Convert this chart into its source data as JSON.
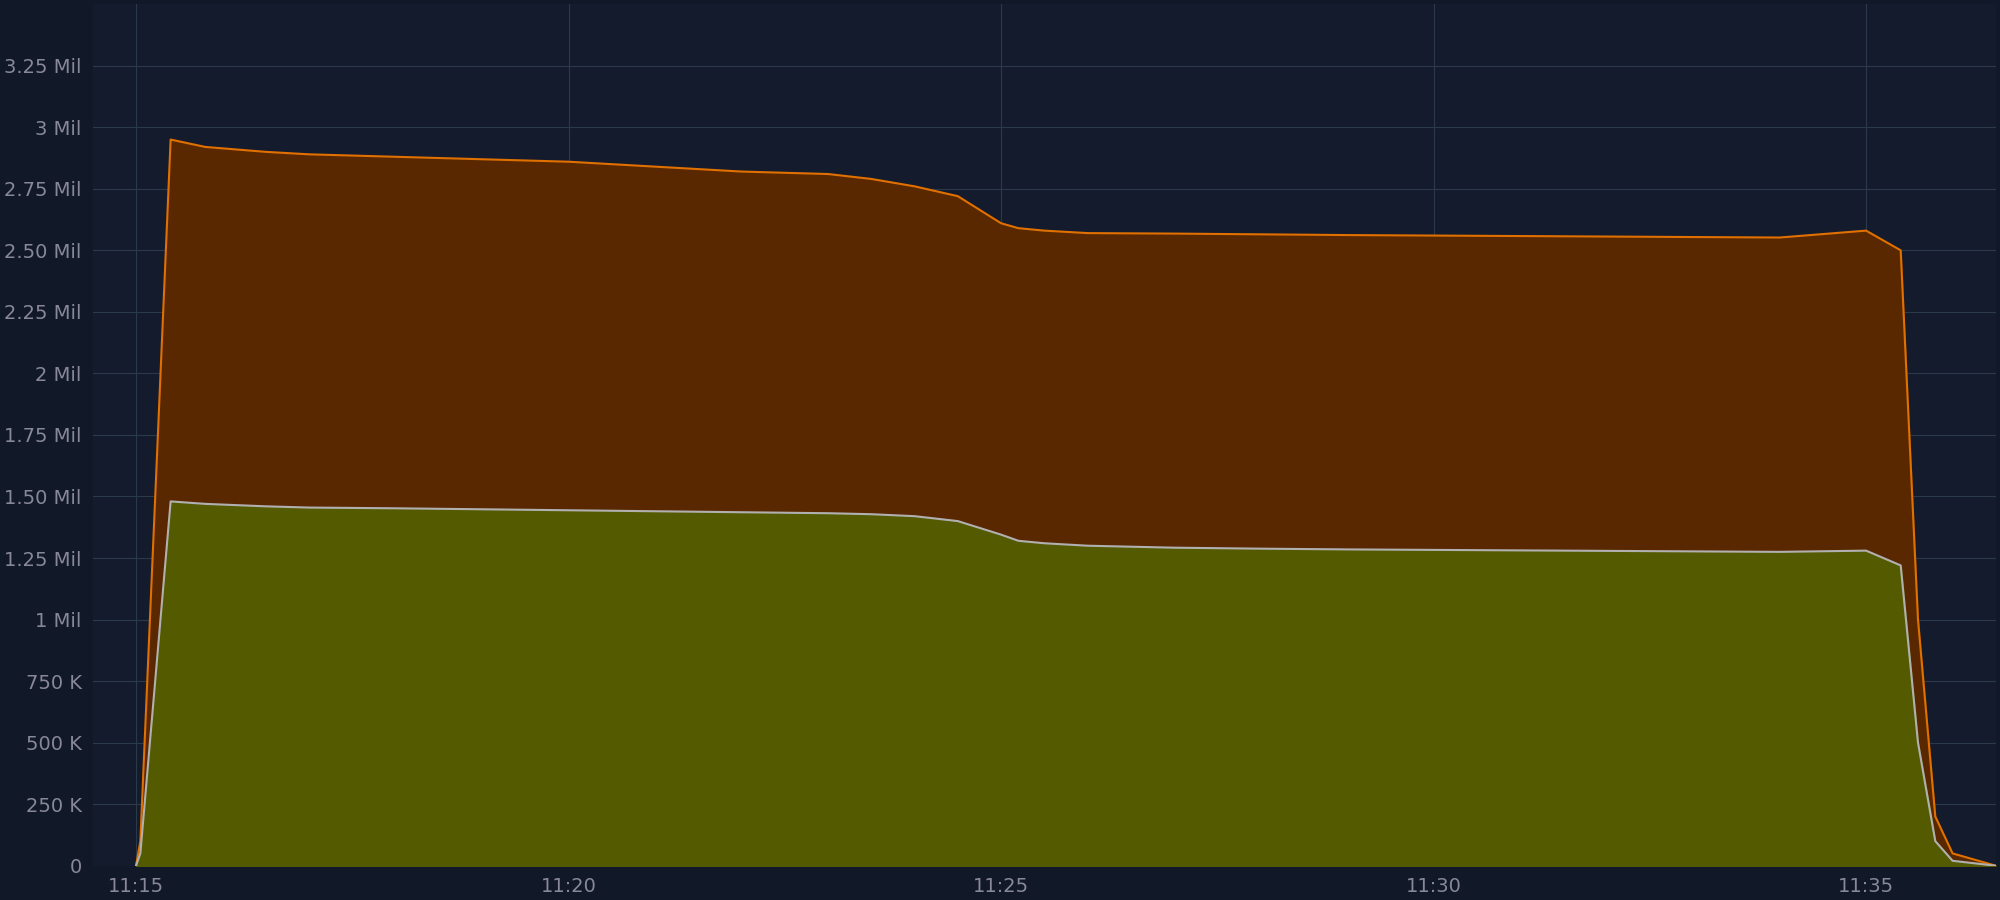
{
  "background_color": "#111827",
  "plot_bg_color": "#141B2D",
  "grid_color": "#2a3a4a",
  "ylim": [
    0,
    3500000
  ],
  "yticks": [
    0,
    250000,
    500000,
    750000,
    1000000,
    1250000,
    1500000,
    1750000,
    2000000,
    2250000,
    2500000,
    2750000,
    3000000,
    3250000
  ],
  "ytick_labels": [
    "0",
    "250 K",
    "500 K",
    "750 K",
    "1 Mil",
    "1.25 Mil",
    "1.50 Mil",
    "1.75 Mil",
    "2 Mil",
    "2.25 Mil",
    "2.50 Mil",
    "2.75 Mil",
    "3 Mil",
    "3.25 Mil"
  ],
  "xtick_labels": [
    "11:15",
    "11:20",
    "11:25",
    "11:30",
    "11:35"
  ],
  "xtick_positions": [
    0.0,
    5.0,
    10.0,
    15.0,
    20.0
  ],
  "xlim": [
    -0.5,
    21.5
  ],
  "series1_color": "#5a2800",
  "series2_color": "#545a00",
  "line1_color": "#e07000",
  "line2_color": "#b0b0b0",
  "line_width": 1.5,
  "t": [
    0.0,
    0.05,
    0.4,
    0.8,
    1.5,
    2.0,
    3.0,
    4.0,
    5.0,
    6.0,
    7.0,
    8.0,
    8.5,
    9.0,
    9.5,
    10.0,
    10.2,
    10.5,
    11.0,
    12.0,
    13.0,
    14.0,
    15.0,
    16.0,
    17.0,
    18.0,
    19.0,
    20.0,
    20.4,
    20.6,
    20.8,
    21.0,
    21.5
  ],
  "s1": [
    0,
    100000,
    2950000,
    2920000,
    2900000,
    2890000,
    2880000,
    2870000,
    2860000,
    2840000,
    2820000,
    2810000,
    2790000,
    2760000,
    2720000,
    2610000,
    2590000,
    2580000,
    2570000,
    2568000,
    2565000,
    2562000,
    2560000,
    2558000,
    2556000,
    2554000,
    2552000,
    2580000,
    2500000,
    1000000,
    200000,
    50000,
    0
  ],
  "s2": [
    0,
    50000,
    1480000,
    1470000,
    1460000,
    1455000,
    1452000,
    1448000,
    1444000,
    1440000,
    1436000,
    1432000,
    1428000,
    1420000,
    1400000,
    1345000,
    1320000,
    1310000,
    1300000,
    1292000,
    1288000,
    1285000,
    1283000,
    1281000,
    1279000,
    1277000,
    1275000,
    1280000,
    1220000,
    500000,
    100000,
    20000,
    0
  ],
  "tick_color": "#888899",
  "tick_fontsize": 14,
  "figsize": [
    20.0,
    9.0
  ],
  "dpi": 100
}
